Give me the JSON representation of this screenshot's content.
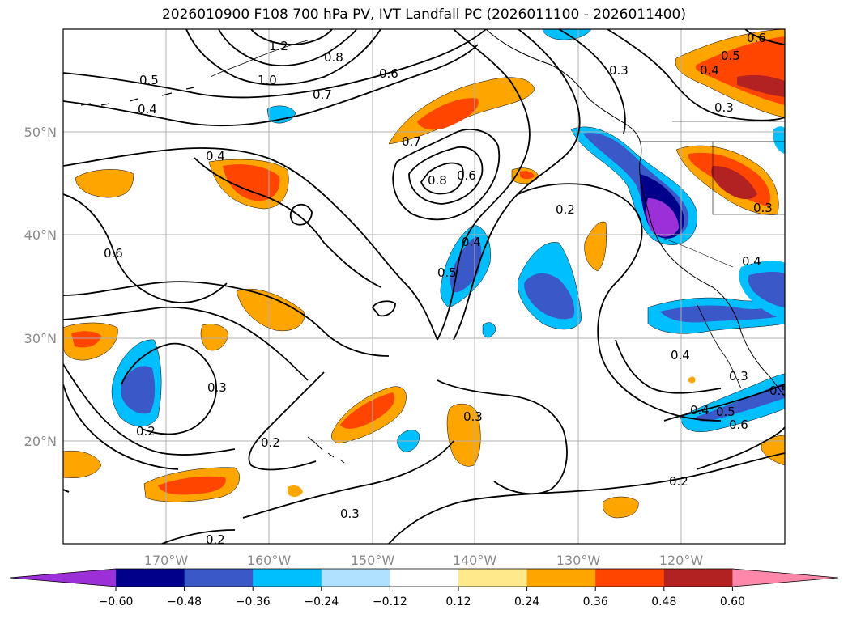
{
  "title": "2026010900 F108 700 hPa PV, IVT Landfall PC (2026011100 - 2026011400)",
  "axes": {
    "lat_labels": [
      "50°N",
      "40°N",
      "30°N",
      "20°N"
    ],
    "lon_labels": [
      "170°W",
      "160°W",
      "150°W",
      "140°W",
      "130°W",
      "120°W"
    ]
  },
  "colorbar": {
    "ticks": [
      "−0.60",
      "−0.48",
      "−0.36",
      "−0.24",
      "−0.12",
      "0.12",
      "0.24",
      "0.36",
      "0.48",
      "0.60"
    ],
    "colors": [
      "#9b30d8",
      "#00008b",
      "#3a58c8",
      "#00bfff",
      "#b0e2ff",
      "#ffffff",
      "#ffe98a",
      "#ffa500",
      "#ff4500",
      "#b22222",
      "#ff88aa"
    ]
  },
  "contour_labels": [
    "1.2",
    "0.8",
    "1.0",
    "0.7",
    "0.6",
    "0.5",
    "0.4",
    "0.4",
    "0.6",
    "0.7",
    "0.8",
    "0.6",
    "0.3",
    "0.6",
    "0.5",
    "0.4",
    "0.3",
    "0.2",
    "0.5",
    "0.4",
    "0.3",
    "0.2",
    "0.3",
    "0.3",
    "0.2",
    "0.3",
    "0.2",
    "0.4",
    "0.3",
    "0.4",
    "0.5",
    "0.6",
    "0.2",
    "0.4",
    "0.5"
  ]
}
